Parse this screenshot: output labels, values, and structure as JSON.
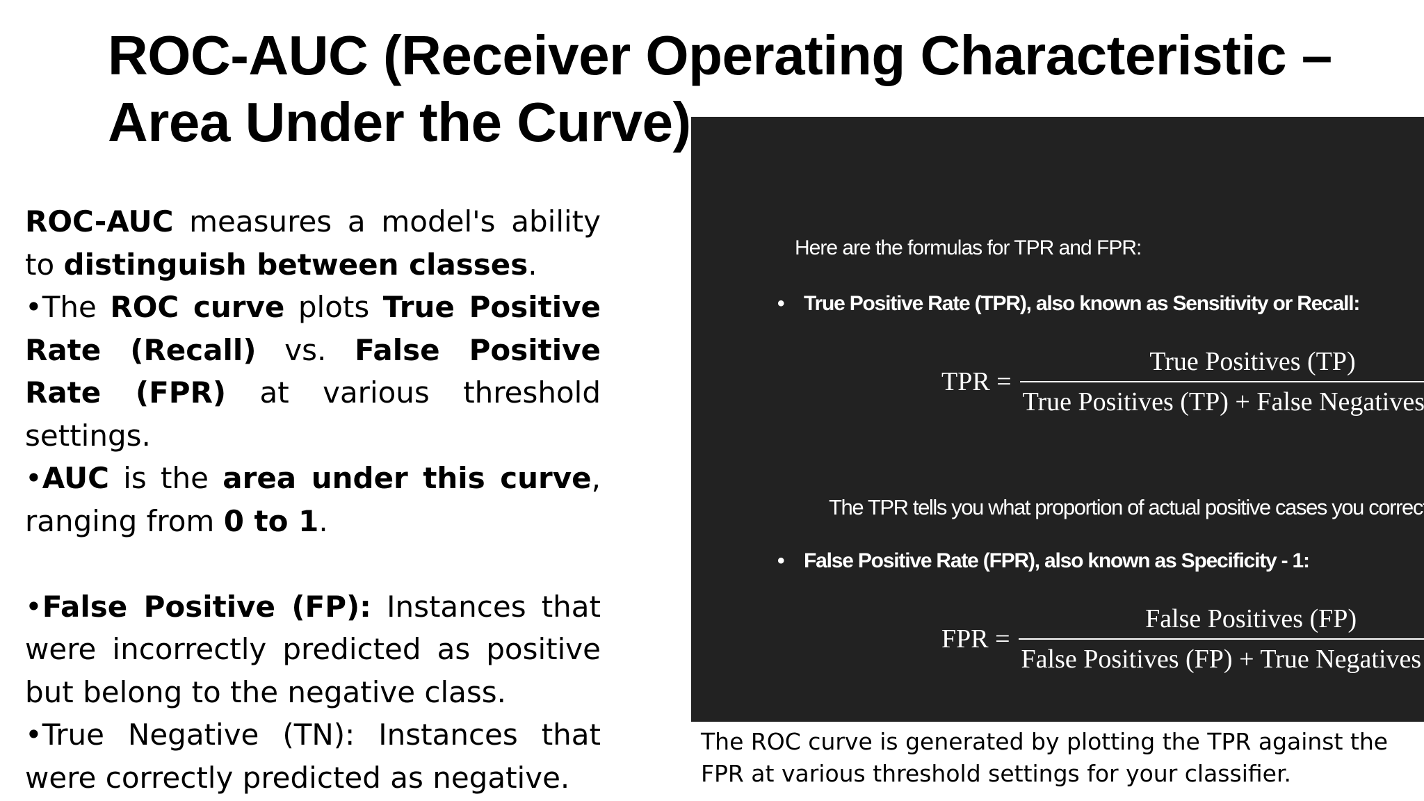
{
  "slide": {
    "title_line1": "ROC-AUC (Receiver Operating Characteristic –",
    "title_line2": "Area Under the Curve)"
  },
  "left_text": {
    "p1_b1": "ROC-AUC",
    "p1_t1": " measures a model's ability to ",
    "p1_b2": "distinguish between classes",
    "p1_t2": ".",
    "p2_t1": "•The ",
    "p2_b1": "ROC curve",
    "p2_t2": " plots ",
    "p2_b2": "True Positive Rate (Recall)",
    "p2_t3": " vs. ",
    "p2_b3": "False Positive Rate (FPR)",
    "p2_t4": " at various threshold settings.",
    "p3_t1": "•",
    "p3_b1": "AUC",
    "p3_t2": " is the ",
    "p3_b2": "area under this curve",
    "p3_t3": ", ranging from ",
    "p3_b3": "0 to 1",
    "p3_t4": ".",
    "p4_t1": "•",
    "p4_b1": "False Positive (FP):",
    "p4_t2": " Instances that were incorrectly predicted as positive but belong to the negative class.",
    "p5_t1": "•True Negative (TN): Instances that were correctly predicted as negative."
  },
  "formula_panel": {
    "intro": "Here are the formulas for TPR and FPR:",
    "bullet_tpr": "True Positive Rate (TPR), also known as Sensitivity or Recall:",
    "tpr_lhs": "TPR =",
    "tpr_numerator": "True Positives (TP)",
    "tpr_denominator": "True Positives (TP) + False Negatives (FN)",
    "tpr_description": "The TPR tells you what proportion of actual positive cases you correctly identified.",
    "bullet_fpr": "False Positive Rate (FPR), also known as Specificity - 1:",
    "fpr_lhs": "FPR =",
    "fpr_numerator": "False Positives (FP)",
    "fpr_denominator": "False Positives (FP) + True Negatives (TN)",
    "background_color": "#222222"
  },
  "caption": "The ROC curve is generated by plotting the TPR against the FPR at various threshold settings for your classifier."
}
